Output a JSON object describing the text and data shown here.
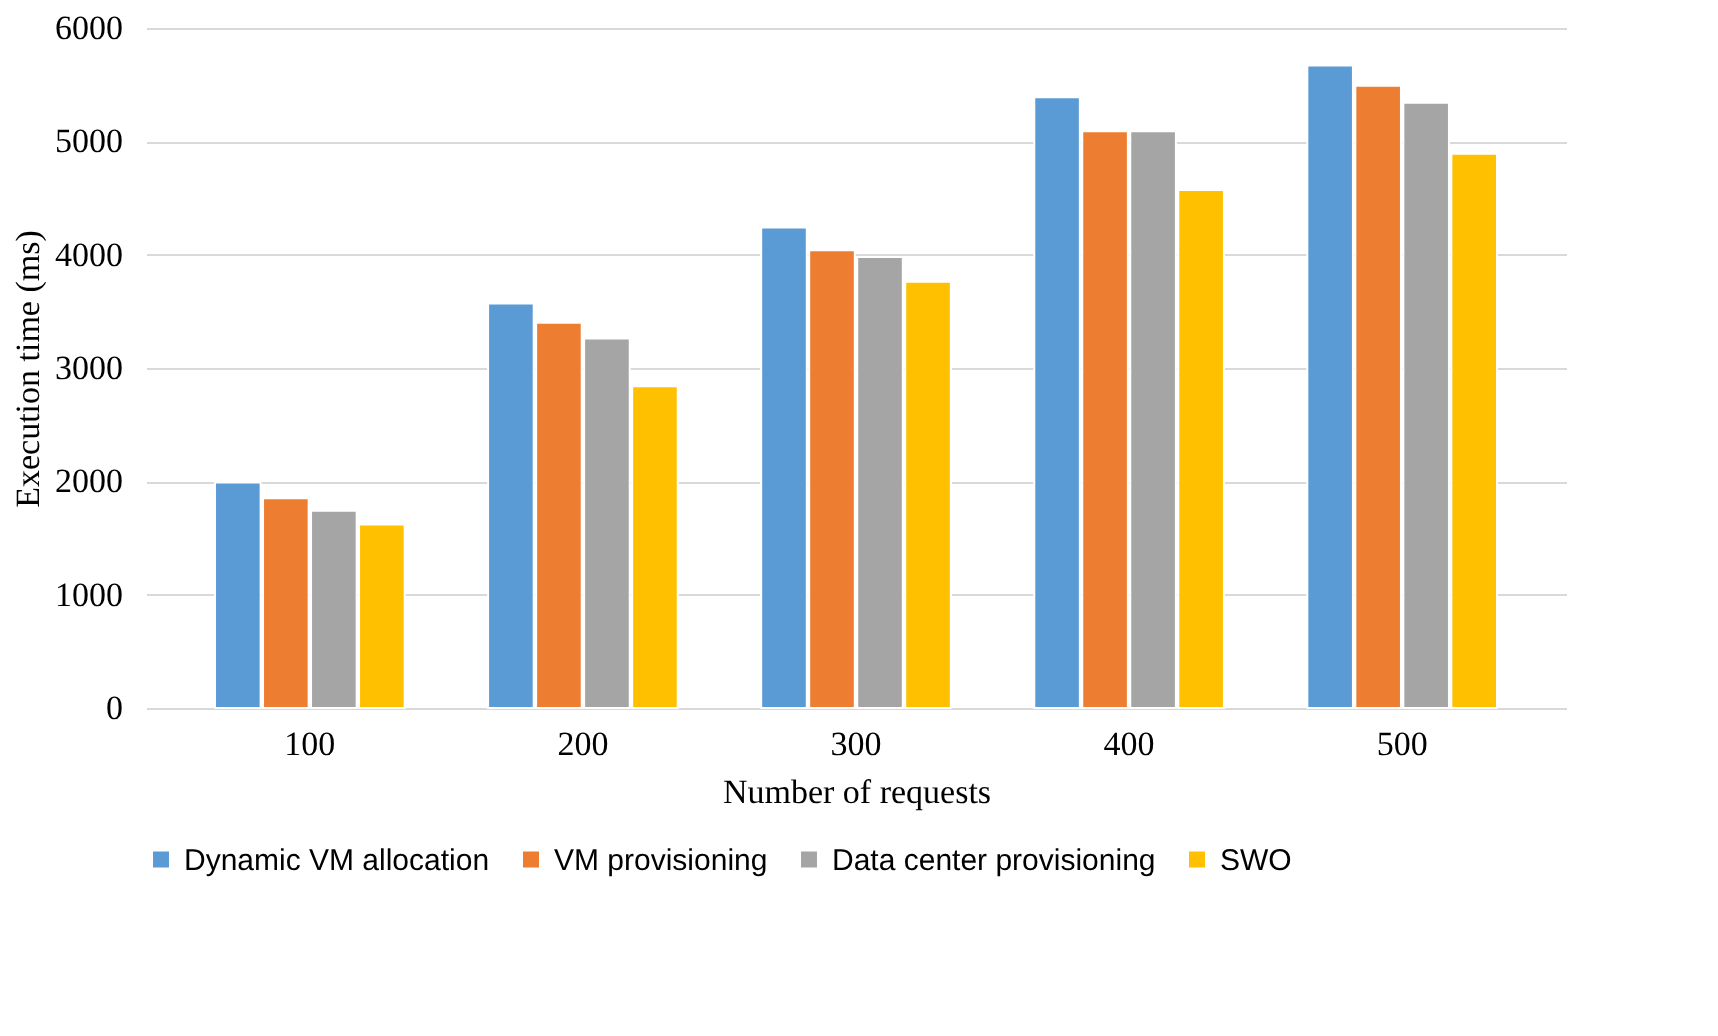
{
  "chart_data": {
    "type": "bar",
    "xlabel": "Number of requests",
    "ylabel": "Execution time (ms)",
    "categories": [
      "100",
      "200",
      "300",
      "400",
      "500"
    ],
    "series": [
      {
        "name": "Dynamic VM allocation",
        "color": "#5b9bd5",
        "values": [
          1990,
          3570,
          4240,
          5390,
          5670
        ]
      },
      {
        "name": "VM provisioning",
        "color": "#ed7d31",
        "values": [
          1850,
          3400,
          4040,
          5090,
          5490
        ]
      },
      {
        "name": "Data center provisioning",
        "color": "#a5a5a5",
        "values": [
          1740,
          3260,
          3980,
          5090,
          5340
        ]
      },
      {
        "name": "SWO",
        "color": "#ffc000",
        "values": [
          1620,
          2840,
          3760,
          4570,
          4890
        ]
      }
    ],
    "ylim": [
      0,
      6000
    ],
    "yticks": [
      0,
      1000,
      2000,
      3000,
      4000,
      5000,
      6000
    ],
    "grid": "y",
    "legend": "bottom"
  }
}
